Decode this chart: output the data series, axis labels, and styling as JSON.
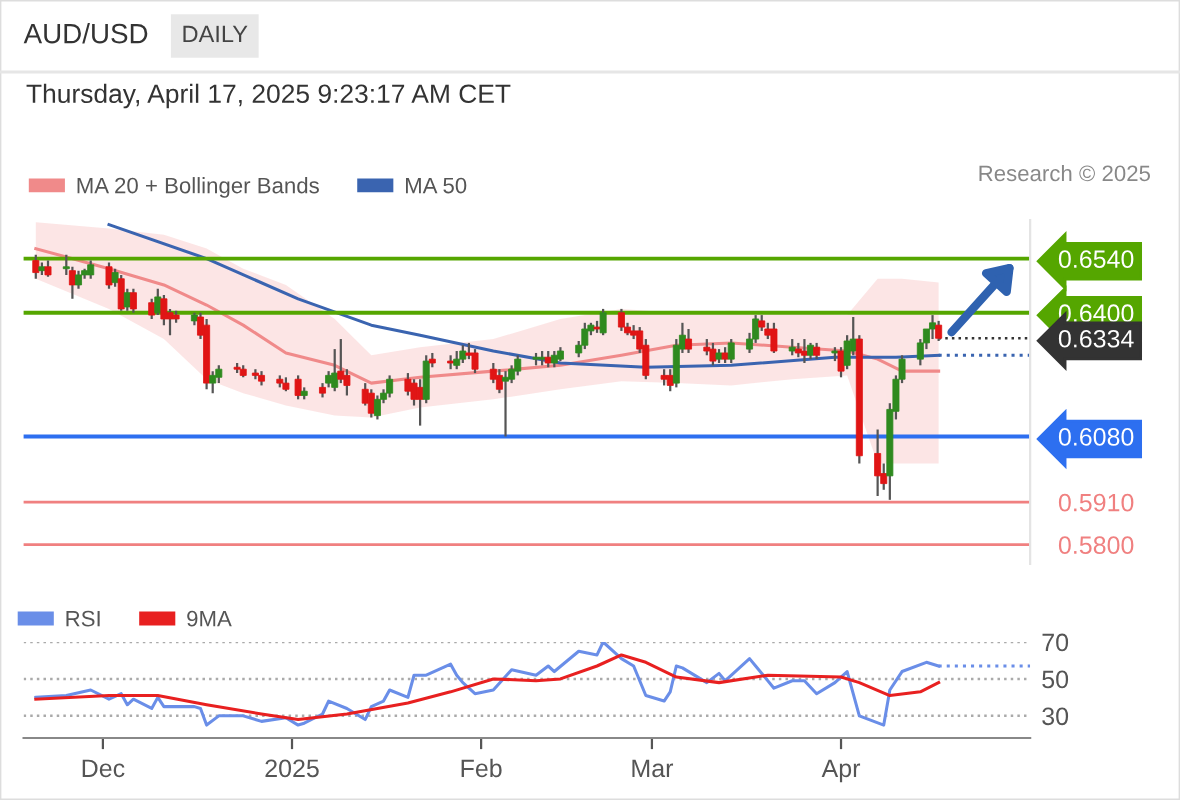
{
  "chart_data": [
    {
      "type": "candlestick",
      "title": "AUD/USD",
      "subtitle": "Thursday, April 17, 2025 9:23:17 AM CET",
      "annotations": [
        "DAILY",
        "Research © 2025"
      ],
      "x": [
        "2024-11-20",
        "2024-11-21",
        "2024-11-22",
        "2024-11-25",
        "2024-11-26",
        "2024-11-27",
        "2024-11-28",
        "2024-11-29",
        "2024-12-02",
        "2024-12-03",
        "2024-12-04",
        "2024-12-05",
        "2024-12-06",
        "2024-12-09",
        "2024-12-10",
        "2024-12-11",
        "2024-12-12",
        "2024-12-13",
        "2024-12-16",
        "2024-12-17",
        "2024-12-18",
        "2024-12-19",
        "2024-12-20",
        "2024-12-23",
        "2024-12-24",
        "2024-12-26",
        "2024-12-27",
        "2024-12-30",
        "2024-12-31",
        "2025-01-02",
        "2025-01-03",
        "2025-01-06",
        "2025-01-07",
        "2025-01-08",
        "2025-01-09",
        "2025-01-10",
        "2025-01-13",
        "2025-01-14",
        "2025-01-15",
        "2025-01-16",
        "2025-01-17",
        "2025-01-20",
        "2025-01-21",
        "2025-01-22",
        "2025-01-23",
        "2025-01-24",
        "2025-01-27",
        "2025-01-28",
        "2025-01-29",
        "2025-01-30",
        "2025-01-31",
        "2025-02-03",
        "2025-02-04",
        "2025-02-05",
        "2025-02-06",
        "2025-02-07",
        "2025-02-10",
        "2025-02-11",
        "2025-02-12",
        "2025-02-13",
        "2025-02-14",
        "2025-02-17",
        "2025-02-18",
        "2025-02-19",
        "2025-02-20",
        "2025-02-21",
        "2025-02-24",
        "2025-02-25",
        "2025-02-26",
        "2025-02-27",
        "2025-02-28",
        "2025-03-03",
        "2025-03-04",
        "2025-03-05",
        "2025-03-06",
        "2025-03-07",
        "2025-03-10",
        "2025-03-11",
        "2025-03-12",
        "2025-03-13",
        "2025-03-14",
        "2025-03-17",
        "2025-03-18",
        "2025-03-19",
        "2025-03-20",
        "2025-03-21",
        "2025-03-24",
        "2025-03-25",
        "2025-03-26",
        "2025-03-27",
        "2025-03-28",
        "2025-03-31",
        "2025-04-01",
        "2025-04-02",
        "2025-04-03",
        "2025-04-04",
        "2025-04-07",
        "2025-04-08",
        "2025-04-09",
        "2025-04-10",
        "2025-04-11",
        "2025-04-14",
        "2025-04-15",
        "2025-04-16",
        "2025-04-17"
      ],
      "ohlc": [
        [
          0.6535,
          0.655,
          0.6488,
          0.6504
        ],
        [
          0.6509,
          0.653,
          0.6498,
          0.6519
        ],
        [
          0.6519,
          0.6535,
          0.6493,
          0.6498
        ],
        [
          0.6514,
          0.655,
          0.6498,
          0.6519
        ],
        [
          0.6509,
          0.6519,
          0.6436,
          0.6472
        ],
        [
          0.6472,
          0.6509,
          0.6462,
          0.6498
        ],
        [
          0.6498,
          0.6514,
          0.6488,
          0.6509
        ],
        [
          0.6498,
          0.6535,
          0.6488,
          0.6524
        ],
        [
          0.6519,
          0.653,
          0.6462,
          0.6472
        ],
        [
          0.6478,
          0.6514,
          0.6467,
          0.6504
        ],
        [
          0.6488,
          0.6498,
          0.6405,
          0.641
        ],
        [
          0.6415,
          0.6462,
          0.6405,
          0.6452
        ],
        [
          0.6452,
          0.6462,
          0.64,
          0.641
        ],
        [
          0.6426,
          0.6436,
          0.6384,
          0.6394
        ],
        [
          0.64,
          0.6462,
          0.6394,
          0.6441
        ],
        [
          0.6436,
          0.6446,
          0.6368,
          0.6384
        ],
        [
          0.64,
          0.641,
          0.6342,
          0.6384
        ],
        [
          0.6394,
          0.6405,
          0.6374,
          0.6384
        ],
        [
          0.6379,
          0.64,
          0.6368,
          0.6394
        ],
        [
          0.6389,
          0.64,
          0.6332,
          0.6342
        ],
        [
          0.6368,
          0.6384,
          0.6202,
          0.6218
        ],
        [
          0.6218,
          0.6249,
          0.6192,
          0.6238
        ],
        [
          0.6233,
          0.6264,
          0.6218,
          0.6254
        ],
        [
          0.6259,
          0.627,
          0.6244,
          0.6254
        ],
        [
          0.6254,
          0.6264,
          0.6233,
          0.6238
        ],
        [
          0.6244,
          0.6254,
          0.6228,
          0.6238
        ],
        [
          0.6238,
          0.6249,
          0.6212,
          0.6223
        ],
        [
          0.6228,
          0.6238,
          0.6207,
          0.6218
        ],
        [
          0.6218,
          0.6233,
          0.6197,
          0.6202
        ],
        [
          0.6228,
          0.6238,
          0.6176,
          0.6186
        ],
        [
          0.6186,
          0.6207,
          0.6176,
          0.6197
        ],
        [
          0.6207,
          0.6218,
          0.6181,
          0.6192
        ],
        [
          0.6218,
          0.6249,
          0.6207,
          0.6238
        ],
        [
          0.6207,
          0.6306,
          0.6197,
          0.6244
        ],
        [
          0.6249,
          0.6332,
          0.6218,
          0.6228
        ],
        [
          0.6238,
          0.6254,
          0.6186,
          0.6212
        ],
        [
          0.6202,
          0.6218,
          0.616,
          0.6166
        ],
        [
          0.6192,
          0.6202,
          0.6129,
          0.614
        ],
        [
          0.6134,
          0.6186,
          0.6124,
          0.6176
        ],
        [
          0.6176,
          0.6202,
          0.6166,
          0.6192
        ],
        [
          0.6192,
          0.6238,
          0.6181,
          0.6228
        ],
        [
          0.6228,
          0.6244,
          0.6186,
          0.6197
        ],
        [
          0.6218,
          0.6228,
          0.616,
          0.6176
        ],
        [
          0.6207,
          0.6228,
          0.6108,
          0.6176
        ],
        [
          0.6176,
          0.629,
          0.6166,
          0.6275
        ],
        [
          0.628,
          0.6296,
          0.6259,
          0.627
        ],
        [
          0.6275,
          0.629,
          0.6254,
          0.627
        ],
        [
          0.6264,
          0.6301,
          0.6254,
          0.628
        ],
        [
          0.628,
          0.6316,
          0.627,
          0.6301
        ],
        [
          0.6296,
          0.6322,
          0.628,
          0.629
        ],
        [
          0.6296,
          0.6306,
          0.6244,
          0.6254
        ],
        [
          0.6254,
          0.627,
          0.6218,
          0.6228
        ],
        [
          0.6238,
          0.6254,
          0.6192,
          0.6202
        ],
        [
          0.6223,
          0.6249,
          0.608,
          0.6233
        ],
        [
          0.6228,
          0.6264,
          0.6218,
          0.6254
        ],
        [
          0.6249,
          0.629,
          0.6238,
          0.628
        ],
        [
          0.628,
          0.6296,
          0.6264,
          0.6285
        ],
        [
          0.628,
          0.6301,
          0.6264,
          0.6285
        ],
        [
          0.6285,
          0.6301,
          0.6259,
          0.627
        ],
        [
          0.627,
          0.6301,
          0.6259,
          0.629
        ],
        [
          0.628,
          0.6311,
          0.6275,
          0.6301
        ],
        [
          0.6296,
          0.6327,
          0.6285,
          0.6316
        ],
        [
          0.6316,
          0.6374,
          0.6306,
          0.6358
        ],
        [
          0.6353,
          0.6374,
          0.6342,
          0.6368
        ],
        [
          0.6363,
          0.6379,
          0.6348,
          0.6358
        ],
        [
          0.6348,
          0.641,
          0.6342,
          0.64
        ],
        [
          0.64,
          0.641,
          0.6353,
          0.6363
        ],
        [
          0.6363,
          0.6374,
          0.6342,
          0.6348
        ],
        [
          0.6353,
          0.6368,
          0.6332,
          0.6342
        ],
        [
          0.6353,
          0.6363,
          0.6296,
          0.6306
        ],
        [
          0.6316,
          0.6332,
          0.6228,
          0.6238
        ],
        [
          0.6238,
          0.6254,
          0.6212,
          0.6228
        ],
        [
          0.6238,
          0.6254,
          0.6197,
          0.6212
        ],
        [
          0.6218,
          0.6332,
          0.6207,
          0.6316
        ],
        [
          0.6306,
          0.6374,
          0.6296,
          0.6342
        ],
        [
          0.6332,
          0.6358,
          0.6296,
          0.6306
        ],
        [
          0.6311,
          0.6332,
          0.629,
          0.6301
        ],
        [
          0.6306,
          0.6322,
          0.6264,
          0.6275
        ],
        [
          0.628,
          0.6306,
          0.627,
          0.6296
        ],
        [
          0.6296,
          0.6311,
          0.627,
          0.628
        ],
        [
          0.628,
          0.6332,
          0.627,
          0.6322
        ],
        [
          0.6306,
          0.6348,
          0.6296,
          0.6332
        ],
        [
          0.6332,
          0.6394,
          0.6322,
          0.6384
        ],
        [
          0.6379,
          0.6394,
          0.6353,
          0.6363
        ],
        [
          0.6358,
          0.6374,
          0.6332,
          0.6342
        ],
        [
          0.6358,
          0.6374,
          0.6296,
          0.6301
        ],
        [
          0.6301,
          0.6332,
          0.629,
          0.6311
        ],
        [
          0.6306,
          0.6322,
          0.6285,
          0.6296
        ],
        [
          0.6301,
          0.6332,
          0.627,
          0.629
        ],
        [
          0.629,
          0.6322,
          0.628,
          0.6316
        ],
        [
          0.6311,
          0.6322,
          0.628,
          0.629
        ],
        [
          0.6296,
          0.6311,
          0.6275,
          0.6301
        ],
        [
          0.6301,
          0.6311,
          0.6233,
          0.6249
        ],
        [
          0.6264,
          0.6342,
          0.6254,
          0.6327
        ],
        [
          0.6301,
          0.6389,
          0.629,
          0.6332
        ],
        [
          0.6332,
          0.6342,
          0.601,
          0.603
        ],
        [
          0.6036,
          0.6098,
          0.5926,
          0.5978
        ],
        [
          0.5984,
          0.601,
          0.5942,
          0.5958
        ],
        [
          0.5978,
          0.6166,
          0.5916,
          0.615
        ],
        [
          0.6145,
          0.6238,
          0.6124,
          0.6228
        ],
        [
          0.6228,
          0.629,
          0.6218,
          0.628
        ],
        [
          0.628,
          0.6332,
          0.6264,
          0.6322
        ],
        [
          0.6322,
          0.6358,
          0.6306,
          0.6358
        ],
        [
          0.6358,
          0.6394,
          0.6332,
          0.6374
        ],
        [
          0.6368,
          0.6379,
          0.6327,
          0.6334
        ]
      ],
      "series": [
        {
          "name": "MA 20 + Bollinger Bands",
          "type": "line",
          "color": "#f08a8a",
          "x": [
            "2024-11-20",
            "2024-12-02",
            "2024-12-11",
            "2024-12-18",
            "2024-12-24",
            "2024-12-31",
            "2025-01-08",
            "2025-01-14",
            "2025-01-22",
            "2025-02-03",
            "2025-02-14",
            "2025-02-24",
            "2025-03-05",
            "2025-03-14",
            "2025-03-24",
            "2025-04-02",
            "2025-04-07",
            "2025-04-11",
            "2025-04-17"
          ],
          "values": [
            0.6566,
            0.6514,
            0.6472,
            0.642,
            0.6368,
            0.6296,
            0.6264,
            0.6218,
            0.6233,
            0.6249,
            0.6264,
            0.629,
            0.6316,
            0.6322,
            0.6311,
            0.6301,
            0.628,
            0.6249,
            0.6249
          ],
          "lower": [
            0.6488,
            0.641,
            0.6332,
            0.6228,
            0.6192,
            0.616,
            0.6134,
            0.6129,
            0.6155,
            0.6176,
            0.6202,
            0.6223,
            0.6218,
            0.6212,
            0.6228,
            0.6238,
            0.601,
            0.601,
            0.601
          ],
          "upper": [
            0.6634,
            0.6618,
            0.6602,
            0.6566,
            0.6514,
            0.6472,
            0.6384,
            0.629,
            0.6311,
            0.6332,
            0.6384,
            0.641,
            0.64,
            0.6405,
            0.64,
            0.6394,
            0.6488,
            0.6488,
            0.6478
          ]
        },
        {
          "name": "MA 50",
          "type": "line",
          "color": "#3a64b0",
          "x": [
            "2024-12-02",
            "2024-12-18",
            "2025-01-02",
            "2025-01-14",
            "2025-01-22",
            "2025-02-03",
            "2025-02-14",
            "2025-02-28",
            "2025-03-14",
            "2025-03-31",
            "2025-04-10",
            "2025-04-17"
          ],
          "values": [
            0.6628,
            0.654,
            0.6436,
            0.6368,
            0.6342,
            0.6301,
            0.627,
            0.6259,
            0.6264,
            0.6285,
            0.6285,
            0.629
          ]
        },
        {
          "type": "line",
          "color": "#3a64b0",
          "line_style": "dotted",
          "x": [
            "2025-04-17",
            "2025-05-02"
          ],
          "values": [
            0.629,
            0.629
          ]
        }
      ],
      "ref_lines": [
        {
          "axis": "y",
          "value": 0.654,
          "color": "#55a600"
        },
        {
          "axis": "y",
          "value": 0.64,
          "color": "#55a600"
        },
        {
          "axis": "y",
          "value": 0.6334,
          "color": "#333333",
          "line_style": "dotted"
        },
        {
          "axis": "y",
          "value": 0.608,
          "color": "#2d6ff0"
        },
        {
          "axis": "y",
          "value": 0.591,
          "color": "#f08080"
        },
        {
          "axis": "y",
          "value": 0.58,
          "color": "#f08080"
        }
      ],
      "yticks": [
        {
          "value": 0.654,
          "label": "0.6540"
        },
        {
          "value": 0.64,
          "label": "0.6400"
        },
        {
          "value": 0.6334,
          "label": "0.6334"
        },
        {
          "value": 0.608,
          "label": "0.6080"
        },
        {
          "value": 0.591,
          "label": "0.5910"
        },
        {
          "value": 0.58,
          "label": "0.5800"
        }
      ],
      "xlim": [
        "2024-11-18",
        "2025-05-02"
      ],
      "ylim": [
        0.575,
        0.664
      ],
      "tick_labels": "y",
      "legend": "top left"
    },
    {
      "type": "line",
      "series": [
        {
          "name": "RSI",
          "color": "#6a8ee8",
          "x": [
            "2024-11-20",
            "2024-11-25",
            "2024-11-29",
            "2024-12-02",
            "2024-12-04",
            "2024-12-05",
            "2024-12-06",
            "2024-12-09",
            "2024-12-10",
            "2024-12-11",
            "2024-12-16",
            "2024-12-17",
            "2024-12-18",
            "2024-12-20",
            "2024-12-24",
            "2024-12-27",
            "2024-12-31",
            "2025-01-02",
            "2025-01-03",
            "2025-01-06",
            "2025-01-07",
            "2025-01-10",
            "2025-01-13",
            "2025-01-14",
            "2025-01-16",
            "2025-01-17",
            "2025-01-20",
            "2025-01-21",
            "2025-01-23",
            "2025-01-27",
            "2025-01-28",
            "2025-01-29",
            "2025-01-31",
            "2025-02-03",
            "2025-02-06",
            "2025-02-10",
            "2025-02-12",
            "2025-02-13",
            "2025-02-17",
            "2025-02-20",
            "2025-02-21",
            "2025-02-24",
            "2025-02-26",
            "2025-02-28",
            "2025-03-03",
            "2025-03-04",
            "2025-03-05",
            "2025-03-06",
            "2025-03-10",
            "2025-03-12",
            "2025-03-13",
            "2025-03-17",
            "2025-03-18",
            "2025-03-21",
            "2025-03-24",
            "2025-03-26",
            "2025-03-28",
            "2025-03-31",
            "2025-04-02",
            "2025-04-04",
            "2025-04-08",
            "2025-04-09",
            "2025-04-11",
            "2025-04-15",
            "2025-04-17"
          ],
          "values": [
            40,
            41,
            44,
            39,
            42,
            36,
            39,
            34,
            40,
            35,
            35,
            34,
            25,
            30,
            30,
            27,
            29,
            25,
            26,
            31,
            38,
            34,
            28,
            35,
            38,
            44,
            40,
            52,
            52,
            58,
            52,
            48,
            42,
            44,
            55,
            52,
            57,
            54,
            65,
            63,
            70,
            61,
            57,
            41,
            38,
            43,
            57,
            56,
            48,
            53,
            49,
            61,
            57,
            45,
            49,
            49,
            42,
            48,
            54,
            30,
            25,
            44,
            54,
            59,
            57
          ]
        },
        {
          "name": "9MA",
          "color": "#e82020",
          "x": [
            "2024-11-20",
            "2024-12-02",
            "2024-12-10",
            "2024-12-18",
            "2024-12-27",
            "2025-01-02",
            "2025-01-10",
            "2025-01-20",
            "2025-01-27",
            "2025-02-03",
            "2025-02-10",
            "2025-02-14",
            "2025-02-20",
            "2025-02-24",
            "2025-02-28",
            "2025-03-05",
            "2025-03-12",
            "2025-03-20",
            "2025-04-01",
            "2025-04-04",
            "2025-04-09",
            "2025-04-14",
            "2025-04-17"
          ],
          "values": [
            39,
            41,
            41,
            36,
            31,
            28,
            31,
            37,
            43,
            50,
            49,
            50,
            57,
            63,
            59,
            51,
            48,
            52,
            51,
            48,
            41,
            43,
            48
          ]
        },
        {
          "color": "#6a8ee8",
          "line_style": "dotted",
          "x": [
            "2025-04-17",
            "2025-05-02"
          ],
          "values": [
            57,
            57
          ]
        }
      ],
      "xlim": [
        "2024-11-18",
        "2025-05-02"
      ],
      "xticks": [
        {
          "value": "2024-12-01",
          "label": "Dec"
        },
        {
          "value": "2025-01-01",
          "label": "2025"
        },
        {
          "value": "2025-02-01",
          "label": "Feb"
        },
        {
          "value": "2025-03-01",
          "label": "Mar"
        },
        {
          "value": "2025-04-01",
          "label": "Apr"
        }
      ],
      "ylim": [
        18,
        70
      ],
      "yticks": [
        30,
        50,
        70
      ],
      "grid": "y",
      "legend": "top left"
    }
  ]
}
